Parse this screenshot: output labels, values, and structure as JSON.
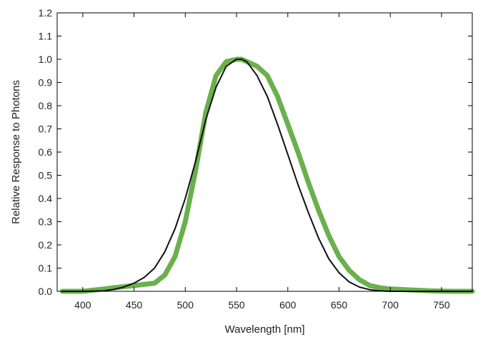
{
  "chart_data": {
    "type": "line",
    "title": "",
    "xlabel": "Wavelength [nm]",
    "ylabel": "Relative Response to Photons",
    "xlim": [
      375,
      780
    ],
    "ylim": [
      0,
      1.2
    ],
    "x_ticks": [
      400,
      450,
      500,
      550,
      600,
      650,
      700,
      750
    ],
    "y_ticks": [
      "0.0",
      "0.1",
      "0.2",
      "0.3",
      "0.4",
      "0.5",
      "0.6",
      "0.7",
      "0.8",
      "0.9",
      "1.0",
      "1.1",
      "1.2"
    ],
    "grid": false,
    "legend": "none",
    "series": [
      {
        "color": "#6ab04c",
        "x": [
          380,
          400,
          420,
          430,
          440,
          450,
          460,
          470,
          480,
          490,
          500,
          510,
          520,
          530,
          540,
          550,
          555,
          560,
          570,
          580,
          590,
          600,
          610,
          620,
          630,
          640,
          650,
          660,
          670,
          680,
          690,
          700,
          710,
          720,
          730,
          740,
          760,
          780
        ],
        "y": [
          0.0,
          0.0,
          0.01,
          0.015,
          0.02,
          0.025,
          0.03,
          0.035,
          0.07,
          0.15,
          0.3,
          0.52,
          0.77,
          0.93,
          0.99,
          1.0,
          1.0,
          0.99,
          0.97,
          0.93,
          0.84,
          0.72,
          0.6,
          0.47,
          0.35,
          0.24,
          0.15,
          0.09,
          0.05,
          0.025,
          0.015,
          0.01,
          0.008,
          0.006,
          0.004,
          0.002,
          0.0,
          0.0
        ]
      },
      {
        "color": "#111111",
        "x": [
          380,
          400,
          420,
          430,
          440,
          450,
          460,
          470,
          480,
          490,
          500,
          510,
          520,
          530,
          540,
          550,
          555,
          560,
          570,
          580,
          590,
          600,
          610,
          620,
          630,
          640,
          650,
          660,
          670,
          680,
          690,
          700,
          710,
          720,
          730,
          740,
          760,
          780
        ],
        "y": [
          0.0,
          0.0,
          0.002,
          0.008,
          0.018,
          0.035,
          0.06,
          0.1,
          0.17,
          0.27,
          0.4,
          0.56,
          0.74,
          0.88,
          0.97,
          1.0,
          1.0,
          0.99,
          0.93,
          0.84,
          0.72,
          0.59,
          0.46,
          0.34,
          0.23,
          0.14,
          0.08,
          0.04,
          0.018,
          0.007,
          0.002,
          0.0,
          0.0,
          0.0,
          0.0,
          0.0,
          0.0,
          0.0
        ]
      }
    ]
  }
}
